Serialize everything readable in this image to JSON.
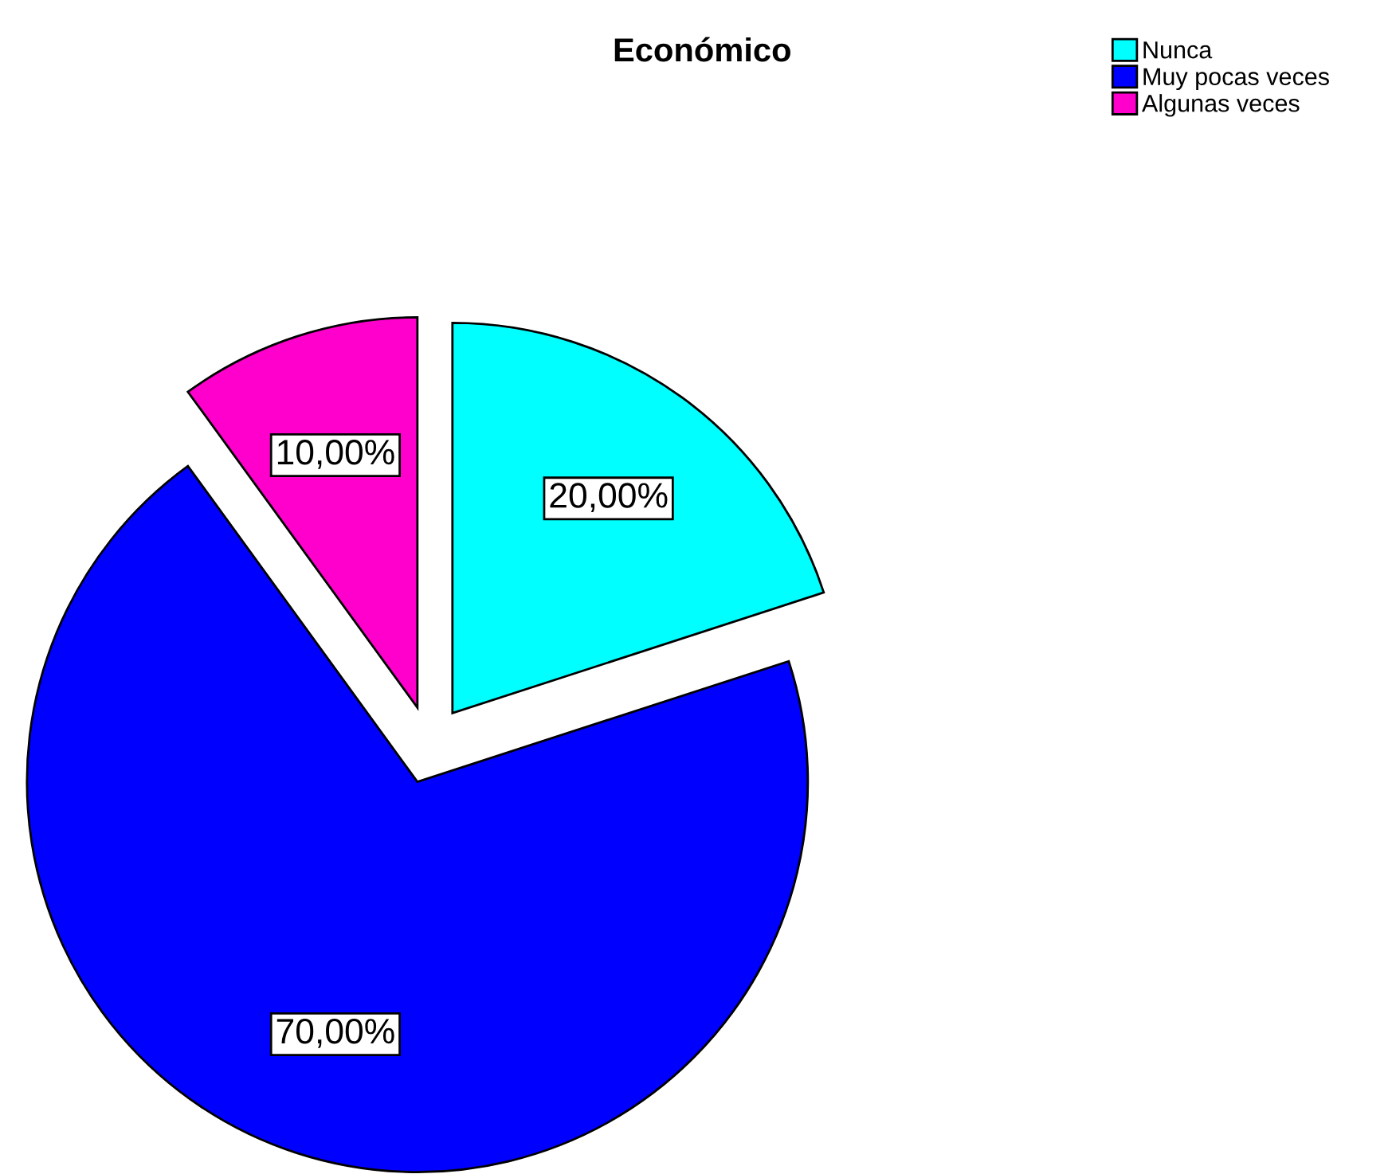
{
  "chart_data": {
    "type": "pie",
    "title": "Económico",
    "categories": [
      "Nunca",
      "Muy pocas veces",
      "Algunas veces"
    ],
    "values": [
      20,
      70,
      10
    ],
    "colors": [
      "#00ffff",
      "#0000ff",
      "#ff00cc"
    ],
    "value_labels": [
      "20,00%",
      "70,00%",
      "10,00%"
    ],
    "legend": "top right"
  }
}
